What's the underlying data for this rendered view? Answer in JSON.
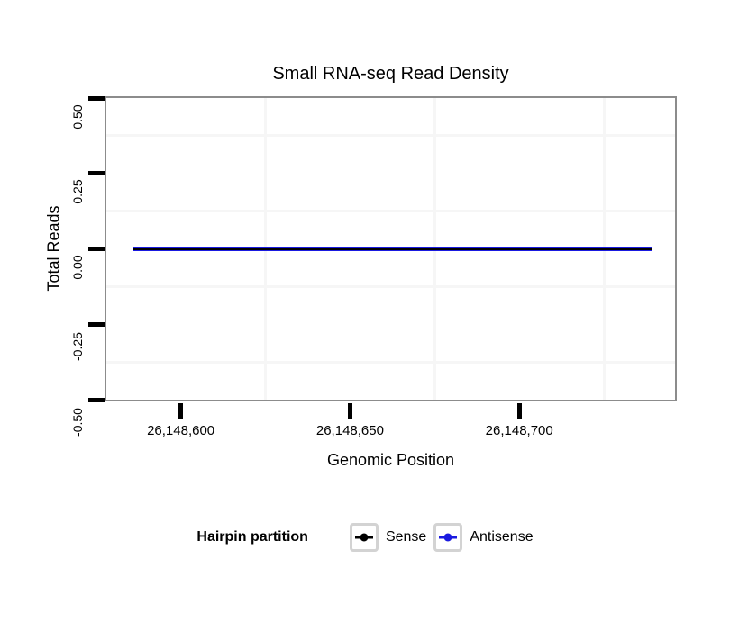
{
  "title": "Small RNA-seq Read Density",
  "y_axis": {
    "label": "Total Reads",
    "ticks": [
      "0.50",
      "0.25",
      "0.00",
      "-0.25",
      "-0.50"
    ],
    "tick_values": [
      0.5,
      0.25,
      0,
      -0.25,
      -0.5
    ]
  },
  "x_axis": {
    "label": "Genomic Position",
    "ticks": [
      "26,148,600",
      "26,148,650",
      "26,148,700"
    ],
    "tick_values": [
      26148600,
      26148650,
      26148700
    ]
  },
  "legend": {
    "title": "Hairpin partition",
    "items": [
      {
        "label": "Sense",
        "color": "#000000"
      },
      {
        "label": "Antisense",
        "color": "#1a1ae0"
      }
    ]
  },
  "colors": {
    "panel_border": "#8c8c8c",
    "grid_minor": "#f6f6f6",
    "tick": "#000000",
    "legend_key_border": "#d3d3d3",
    "sense_line": "#000000",
    "antisense_line": "#1a1ae0"
  },
  "chart_data": {
    "type": "line",
    "title": "Small RNA-seq Read Density",
    "xlabel": "Genomic Position",
    "ylabel": "Total Reads",
    "xlim": [
      26148578,
      26148746
    ],
    "ylim": [
      -0.5,
      0.5
    ],
    "x_ticks": [
      26148600,
      26148650,
      26148700
    ],
    "y_ticks": [
      0.5,
      0.25,
      0,
      -0.25,
      -0.5
    ],
    "grid": "minor gridlines only (very light gray); major gridlines not visible",
    "legend_position": "bottom",
    "legend_title": "Hairpin partition",
    "series": [
      {
        "name": "Antisense",
        "color": "#1a1ae0",
        "x_start": 26148586,
        "x_end": 26148739,
        "y_constant": 0
      },
      {
        "name": "Sense",
        "color": "#000000",
        "x_start": 26148586,
        "x_end": 26148739,
        "y_constant": 0
      }
    ],
    "note": "Both series are flat at 0 total reads across the whole genomic window and overlap exactly."
  }
}
